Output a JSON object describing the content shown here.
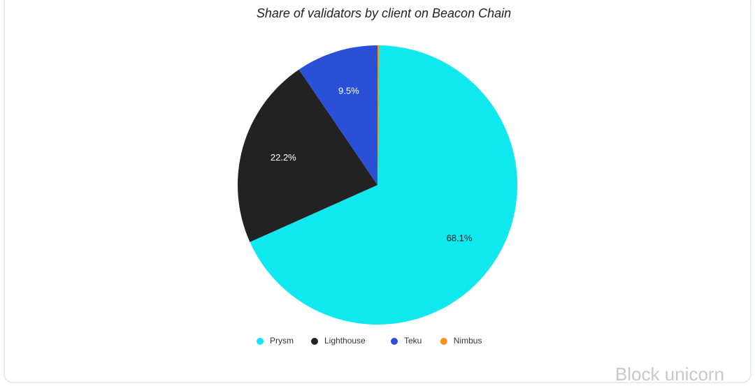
{
  "chart_data": {
    "type": "pie",
    "title": "Share of validators by client on Beacon Chain",
    "categories": [
      "Prysm",
      "Lighthouse",
      "Teku",
      "Nimbus"
    ],
    "values": [
      68.1,
      22.2,
      9.5,
      0.2
    ],
    "value_labels": [
      "68.1%",
      "22.2%",
      "9.5%",
      null
    ],
    "colors": [
      "#0ee8ee",
      "#222222",
      "#2b50d8",
      "#f7931a"
    ],
    "label_colors": [
      "#222222",
      "#ffffff",
      "#ffffff",
      "#ffffff"
    ],
    "legend": "bottom",
    "watermark": "Block unicorn"
  }
}
